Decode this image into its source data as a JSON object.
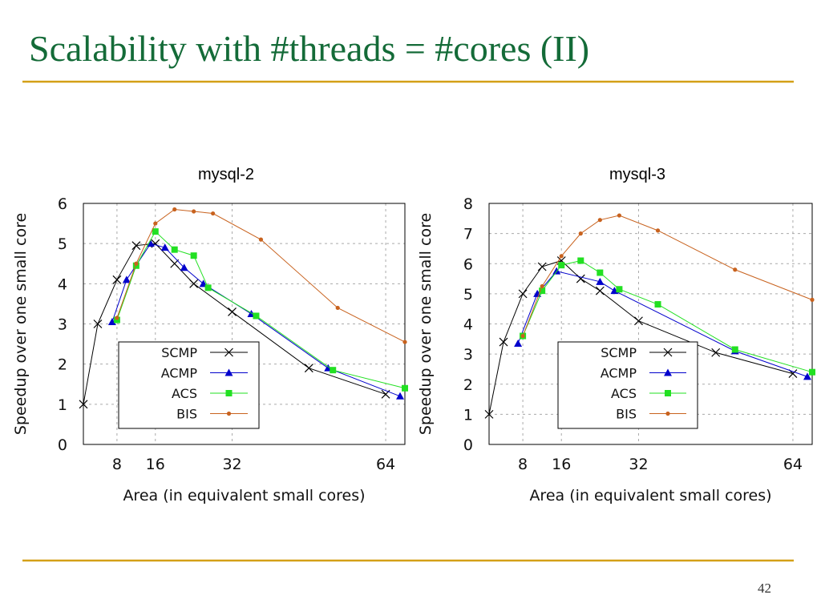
{
  "slide": {
    "title": "Scalability with #threads = #cores (II)",
    "page_number": "42"
  },
  "chart_data": [
    {
      "type": "line",
      "title": "mysql-2",
      "xlabel": "Area (in equivalent small cores)",
      "ylabel": "Speedup over one small core",
      "xlim": [
        1,
        68
      ],
      "ylim": [
        0,
        6
      ],
      "xticks": [
        8,
        16,
        32,
        64
      ],
      "yticks": [
        0,
        1,
        2,
        3,
        4,
        5,
        6
      ],
      "grid": true,
      "legend": "lower left",
      "series": [
        {
          "name": "SCMP",
          "color": "#000000",
          "marker": "x",
          "x": [
            1,
            4,
            8,
            12,
            16,
            20,
            24,
            32,
            48,
            64
          ],
          "values": [
            1.0,
            3.0,
            4.1,
            4.95,
            5.0,
            4.5,
            4.0,
            3.3,
            1.9,
            1.25
          ]
        },
        {
          "name": "ACMP",
          "color": "#0000cc",
          "marker": "triangle",
          "x": [
            7,
            10,
            15,
            18,
            22,
            26,
            36,
            52,
            67
          ],
          "values": [
            3.05,
            4.1,
            5.0,
            4.9,
            4.4,
            4.0,
            3.25,
            1.9,
            1.2
          ]
        },
        {
          "name": "ACS",
          "color": "#22e022",
          "marker": "square",
          "x": [
            8,
            12,
            16,
            20,
            24,
            27,
            37,
            53,
            68
          ],
          "values": [
            3.1,
            4.45,
            5.3,
            4.85,
            4.7,
            3.9,
            3.2,
            1.85,
            1.4
          ]
        },
        {
          "name": "BIS",
          "color": "#c8621e",
          "marker": "circle",
          "x": [
            8,
            12,
            16,
            20,
            24,
            28,
            38,
            54,
            68
          ],
          "values": [
            3.15,
            4.5,
            5.5,
            5.85,
            5.8,
            5.75,
            5.1,
            3.4,
            2.55
          ]
        }
      ]
    },
    {
      "type": "line",
      "title": "mysql-3",
      "xlabel": "Area (in equivalent small cores)",
      "ylabel": "Speedup over one small core",
      "xlim": [
        1,
        68
      ],
      "ylim": [
        0,
        8
      ],
      "xticks": [
        8,
        16,
        32,
        64
      ],
      "yticks": [
        0,
        1,
        2,
        3,
        4,
        5,
        6,
        7,
        8
      ],
      "grid": true,
      "legend": "lower left",
      "series": [
        {
          "name": "SCMP",
          "color": "#000000",
          "marker": "x",
          "x": [
            1,
            4,
            8,
            12,
            16,
            20,
            24,
            32,
            48,
            64
          ],
          "values": [
            1.0,
            3.4,
            5.0,
            5.9,
            6.1,
            5.5,
            5.1,
            4.1,
            3.05,
            2.35
          ]
        },
        {
          "name": "ACMP",
          "color": "#0000cc",
          "marker": "triangle",
          "x": [
            7,
            11,
            15,
            24,
            27,
            52,
            67
          ],
          "values": [
            3.35,
            5.0,
            5.75,
            5.4,
            5.1,
            3.1,
            2.25
          ]
        },
        {
          "name": "ACS",
          "color": "#22e022",
          "marker": "square",
          "x": [
            8,
            12,
            16,
            20,
            24,
            28,
            36,
            52,
            68
          ],
          "values": [
            3.6,
            5.1,
            5.95,
            6.1,
            5.7,
            5.15,
            4.65,
            3.15,
            2.4
          ]
        },
        {
          "name": "BIS",
          "color": "#c8621e",
          "marker": "circle",
          "x": [
            8,
            12,
            16,
            20,
            24,
            28,
            36,
            52,
            68
          ],
          "values": [
            3.6,
            5.25,
            6.25,
            7.0,
            7.45,
            7.6,
            7.1,
            5.8,
            4.8
          ]
        }
      ]
    }
  ]
}
